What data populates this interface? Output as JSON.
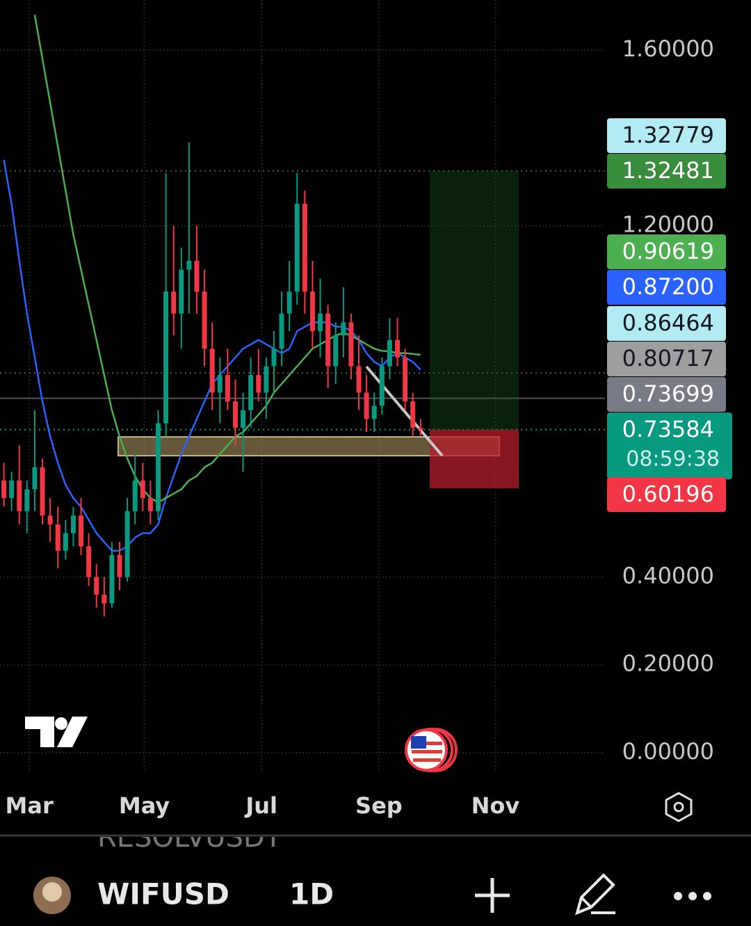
{
  "chart_data": {
    "type": "candlestick",
    "symbol": "WIFUSD",
    "interval": "1D",
    "other_symbol": "RESOLVUSDT",
    "xlim": [
      0,
      78.4
    ],
    "xticks": [
      {
        "value": 3.8,
        "label": "Mar"
      },
      {
        "value": 18.7,
        "label": "May"
      },
      {
        "value": 33.9,
        "label": "Jul"
      },
      {
        "value": 49.1,
        "label": "Sep"
      },
      {
        "value": 64.2,
        "label": "Nov"
      }
    ],
    "ylim": [
      -0.0444,
      1.714
    ],
    "yticks": [
      {
        "value": 0,
        "label": "0.00000"
      },
      {
        "value": 0.2,
        "label": "0.20000"
      },
      {
        "value": 0.4,
        "label": "0.40000"
      },
      {
        "value": 1.2,
        "label": "1.20000"
      },
      {
        "value": 1.6,
        "label": "1.60000"
      }
    ],
    "up_color": "#089981",
    "down_color": "#f23645",
    "open": [
      0.62,
      0.58,
      0.62,
      0.55,
      0.6,
      0.65,
      0.54,
      0.52,
      0.46,
      0.5,
      0.54,
      0.47,
      0.4,
      0.36,
      0.34,
      0.45,
      0.4,
      0.55,
      0.62,
      0.58,
      0.55,
      0.75,
      1.05,
      1.0,
      1.1,
      1.12,
      1.05,
      0.92,
      0.82,
      0.86,
      0.8,
      0.74,
      0.78,
      0.86,
      0.82,
      0.88,
      0.92,
      1.0,
      1.05,
      1.25,
      1.05,
      0.96,
      1.0,
      0.88,
      0.95,
      0.98,
      0.88,
      0.82,
      0.76,
      0.79,
      0.88,
      0.94,
      0.9,
      0.8,
      0.74
    ],
    "high": [
      0.66,
      0.64,
      0.7,
      0.62,
      0.78,
      0.67,
      0.58,
      0.56,
      0.53,
      0.56,
      0.58,
      0.5,
      0.43,
      0.4,
      0.48,
      0.48,
      0.58,
      0.68,
      0.66,
      0.62,
      0.78,
      1.32,
      1.2,
      1.15,
      1.39,
      1.2,
      1.1,
      0.98,
      0.9,
      0.92,
      0.85,
      0.82,
      0.9,
      0.92,
      0.9,
      0.96,
      1.05,
      1.12,
      1.32,
      1.28,
      1.12,
      1.08,
      1.02,
      0.98,
      1.06,
      1.0,
      0.95,
      0.86,
      0.82,
      0.9,
      0.99,
      0.99,
      0.92,
      0.82,
      0.76
    ],
    "low": [
      0.56,
      0.55,
      0.52,
      0.5,
      0.55,
      0.52,
      0.48,
      0.42,
      0.44,
      0.47,
      0.45,
      0.38,
      0.33,
      0.31,
      0.33,
      0.37,
      0.39,
      0.52,
      0.55,
      0.52,
      0.53,
      0.72,
      0.95,
      0.92,
      1.0,
      1.0,
      0.88,
      0.78,
      0.75,
      0.78,
      0.7,
      0.64,
      0.74,
      0.8,
      0.76,
      0.82,
      0.88,
      0.96,
      1.02,
      1.0,
      0.92,
      0.9,
      0.83,
      0.84,
      0.9,
      0.85,
      0.78,
      0.73,
      0.73,
      0.77,
      0.85,
      0.88,
      0.78,
      0.72,
      0.72
    ],
    "close": [
      0.58,
      0.62,
      0.55,
      0.6,
      0.65,
      0.54,
      0.52,
      0.46,
      0.5,
      0.54,
      0.47,
      0.4,
      0.36,
      0.34,
      0.45,
      0.4,
      0.55,
      0.62,
      0.58,
      0.55,
      0.75,
      1.05,
      1.0,
      1.1,
      1.12,
      1.05,
      0.92,
      0.82,
      0.86,
      0.8,
      0.74,
      0.78,
      0.86,
      0.82,
      0.88,
      0.92,
      1.0,
      1.05,
      1.25,
      1.05,
      0.96,
      1.0,
      0.88,
      0.95,
      0.98,
      0.88,
      0.82,
      0.76,
      0.79,
      0.88,
      0.94,
      0.9,
      0.8,
      0.74,
      0.73584
    ],
    "series": [
      {
        "color": "#2962ff",
        "values": [
          1.35,
          1.25,
          1.12,
          1.0,
          0.9,
          0.8,
          0.72,
          0.66,
          0.61,
          0.58,
          0.56,
          0.53,
          0.5,
          0.48,
          0.46,
          0.46,
          0.47,
          0.49,
          0.5,
          0.5,
          0.52,
          0.58,
          0.63,
          0.68,
          0.72,
          0.76,
          0.8,
          0.84,
          0.86,
          0.88,
          0.9,
          0.92,
          0.93,
          0.94,
          0.93,
          0.92,
          0.91,
          0.92,
          0.96,
          0.97,
          0.98,
          0.98,
          0.98,
          0.97,
          0.97,
          0.96,
          0.94,
          0.91,
          0.89,
          0.88,
          0.9,
          0.91,
          0.9,
          0.89,
          0.872
        ]
      },
      {
        "color": "#4caf50",
        "values": [
          null,
          null,
          null,
          null,
          1.68,
          1.58,
          1.48,
          1.38,
          1.28,
          1.18,
          1.1,
          1.02,
          0.94,
          0.86,
          0.78,
          0.72,
          0.67,
          0.63,
          0.6,
          0.58,
          0.57,
          0.58,
          0.59,
          0.6,
          0.62,
          0.63,
          0.65,
          0.66,
          0.68,
          0.7,
          0.72,
          0.73,
          0.75,
          0.77,
          0.79,
          0.82,
          0.84,
          0.86,
          0.88,
          0.9,
          0.92,
          0.93,
          0.94,
          0.95,
          0.956,
          0.95,
          0.94,
          0.93,
          0.92,
          0.915,
          0.914,
          0.91,
          0.91,
          0.908,
          0.906
        ]
      }
    ],
    "price_tags": [
      {
        "value": 1.32779,
        "label": "1.32779",
        "color": "#b2ebf2",
        "text_color": "#131722"
      },
      {
        "value": 1.32481,
        "label": "1.32481",
        "color": "#388e3c",
        "text_color": "#ffffff"
      },
      {
        "value": 0.90619,
        "label": "0.90619",
        "color": "#4caf50",
        "text_color": "#ffffff"
      },
      {
        "value": 0.872,
        "label": "0.87200",
        "color": "#2962ff",
        "text_color": "#ffffff"
      },
      {
        "value": 0.86464,
        "label": "0.86464",
        "color": "#b2ebf2",
        "text_color": "#131722"
      },
      {
        "value": 0.80717,
        "label": "0.80717",
        "color": "#9e9e9e",
        "text_color": "#131722"
      },
      {
        "value": 0.73699,
        "label": "0.73699",
        "color": "#787b86",
        "text_color": "#ffffff"
      },
      {
        "value": 0.73584,
        "label": "0.73584",
        "countdown": "08:59:38",
        "color": "#089981",
        "text_color": "#ffffff"
      },
      {
        "value": 0.60196,
        "label": "0.60196",
        "color": "#f23645",
        "text_color": "#ffffff"
      }
    ]
  }
}
